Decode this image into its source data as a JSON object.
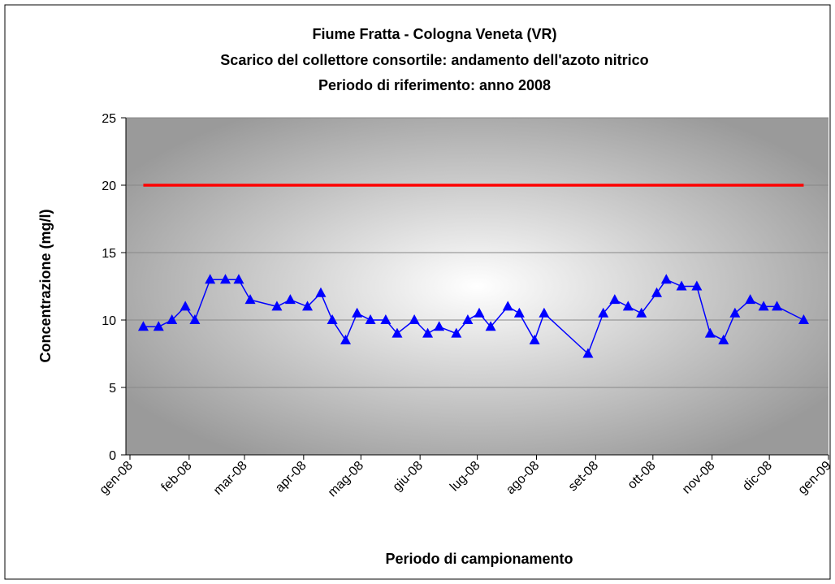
{
  "chart_data": {
    "type": "line",
    "title": [
      "Fiume Fratta - Cologna Veneta (VR)",
      "Scarico del collettore consortile: andamento dell'azoto nitrico",
      "Periodo di riferimento: anno 2008"
    ],
    "xlabel": "Periodo di campionamento",
    "ylabel": "Concentrazione (mg/l)",
    "xlim": [
      0,
      366
    ],
    "xticks": [
      {
        "value": 0,
        "label": "gen-08"
      },
      {
        "value": 31,
        "label": "feb-08"
      },
      {
        "value": 60,
        "label": "mar-08"
      },
      {
        "value": 91,
        "label": "apr-08"
      },
      {
        "value": 121,
        "label": "mag-08"
      },
      {
        "value": 152,
        "label": "giu-08"
      },
      {
        "value": 182,
        "label": "lug-08"
      },
      {
        "value": 213,
        "label": "ago-08"
      },
      {
        "value": 244,
        "label": "set-08"
      },
      {
        "value": 274,
        "label": "ott-08"
      },
      {
        "value": 305,
        "label": "nov-08"
      },
      {
        "value": 335,
        "label": "dic-08"
      },
      {
        "value": 366,
        "label": "gen-09"
      }
    ],
    "ylim": [
      0,
      25
    ],
    "yticks": [
      0,
      5,
      10,
      15,
      20,
      25
    ],
    "grid": true,
    "series": [
      {
        "color": "#0000ff",
        "marker": "triangle",
        "x": [
          7,
          15,
          22,
          29,
          34,
          42,
          50,
          57,
          63,
          77,
          84,
          93,
          100,
          106,
          113,
          119,
          126,
          134,
          140,
          149,
          156,
          162,
          171,
          177,
          183,
          189,
          198,
          204,
          212,
          217,
          240,
          248,
          254,
          261,
          268,
          276,
          281,
          289,
          297,
          304,
          311,
          317,
          325,
          332,
          339,
          353
        ],
        "values": [
          9.5,
          9.5,
          10,
          11,
          10,
          13,
          13,
          13,
          11.5,
          11,
          11.5,
          11,
          12,
          10,
          8.5,
          10.5,
          10,
          10,
          9,
          10,
          9,
          9.5,
          9,
          10,
          10.5,
          9.5,
          11,
          10.5,
          8.5,
          10.5,
          7.5,
          10.5,
          11.5,
          11,
          10.5,
          12,
          13,
          12.5,
          12.5,
          9,
          8.5,
          10.5,
          11.5,
          11,
          11,
          10
        ]
      },
      {
        "color": "#ff0000",
        "x": [
          7,
          353
        ],
        "values": [
          20,
          20
        ]
      }
    ]
  }
}
